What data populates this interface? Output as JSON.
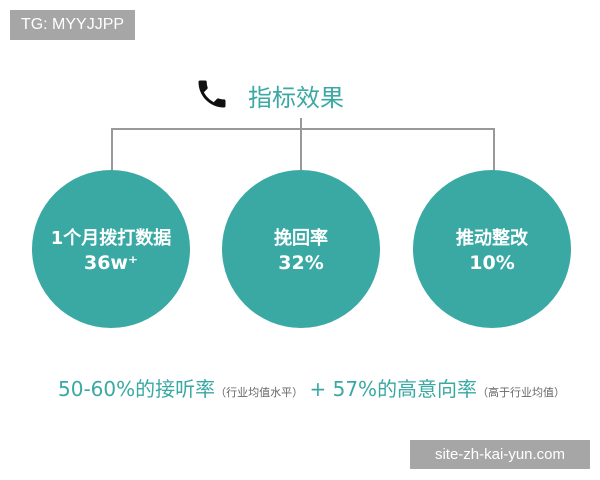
{
  "watermark_top": "TG: MYYJJPP",
  "watermark_bottom": "site-zh-kai-yun.com",
  "title": "指标效果",
  "icon": "phone-icon",
  "accent": "#3aa9a4",
  "metrics": [
    {
      "label": "1个月拨打数据",
      "value": "36w⁺"
    },
    {
      "label": "挽回率",
      "value": "32%"
    },
    {
      "label": "推动整改",
      "value": "10%"
    }
  ],
  "summary": {
    "part1": "50-60%的接听率",
    "note1": "（行业均值水平）",
    "plus": "+",
    "part2": "57%的高意向率",
    "note2": "（高于行业均值）"
  }
}
